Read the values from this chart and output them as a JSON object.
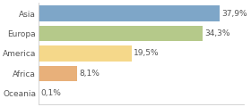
{
  "categories": [
    "Asia",
    "Europa",
    "America",
    "Africa",
    "Oceania"
  ],
  "values": [
    37.9,
    34.3,
    19.5,
    8.1,
    0.1
  ],
  "labels": [
    "37,9%",
    "34,3%",
    "19,5%",
    "8,1%",
    "0,1%"
  ],
  "bar_colors": [
    "#7ea6c8",
    "#b5c98a",
    "#f5d88a",
    "#e8b07a",
    "#d4a06a"
  ],
  "background_color": "#ffffff",
  "xlim": [
    0,
    43
  ],
  "bar_height": 0.78,
  "label_fontsize": 6.5,
  "tick_fontsize": 6.5,
  "spine_color": "#cccccc"
}
